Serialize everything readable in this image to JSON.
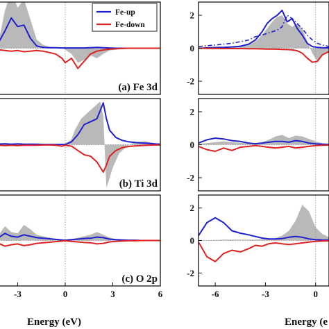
{
  "figure": {
    "legend": {
      "entries": [
        {
          "label": "Fe-up",
          "color": "#1f1fcc"
        },
        {
          "label": "Fe-down",
          "color": "#dd2222"
        }
      ]
    },
    "xlabel": "Energy (eV)",
    "fill_color": "#b9b9b9"
  },
  "chart_data": [
    {
      "type": "line",
      "panel": "left-top",
      "annotation": "(a) Fe 3d",
      "xlim": [
        -4.2,
        6
      ],
      "xticks": [],
      "ylim": [
        -1.6,
        1.6
      ],
      "yticks": [],
      "legend": [
        "Fe-up",
        "Fe-down"
      ],
      "legend_placement": "top-right",
      "fill_series": {
        "x": [
          -4.2,
          -3.8,
          -3.4,
          -3.0,
          -2.6,
          -2.2,
          -1.8,
          -1.4,
          -1.0,
          -0.6,
          -0.2,
          0,
          0.4,
          0.8,
          1.2,
          1.6,
          2.0,
          2.4,
          2.8,
          3.2,
          3.6,
          4.0,
          4.4,
          4.8,
          5.2,
          5.6,
          6.0
        ],
        "y": [
          0.25,
          1.3,
          2.0,
          1.4,
          1.7,
          1.0,
          0.3,
          0.12,
          0.05,
          0.03,
          0.02,
          -0.05,
          -0.2,
          -0.5,
          -0.4,
          -0.25,
          -0.35,
          -0.2,
          -0.08,
          -0.05,
          -0.02,
          0,
          0,
          0,
          0,
          0,
          0
        ]
      },
      "series": [
        {
          "name": "Fe-up",
          "x": [
            -4.2,
            -3.8,
            -3.4,
            -3.0,
            -2.6,
            -2.2,
            -1.8,
            -1.4,
            -1.0,
            -0.6,
            -0.2,
            0,
            0.4,
            0.8,
            1.2,
            1.6,
            2.0,
            2.4,
            2.8,
            3.2,
            3.6,
            4.0,
            4.4,
            4.8,
            5.2,
            5.6,
            6.0
          ],
          "y": [
            0.2,
            0.6,
            1.05,
            0.75,
            0.8,
            0.35,
            0.08,
            0.03,
            0.02,
            0.02,
            0.01,
            0.01,
            0.01,
            0.01,
            0.01,
            0.02,
            0.03,
            0.02,
            0.01,
            0,
            0,
            0,
            0,
            0,
            0,
            0,
            0
          ]
        },
        {
          "name": "Fe-down",
          "x": [
            -4.2,
            -3.8,
            -3.4,
            -3.0,
            -2.6,
            -2.2,
            -1.8,
            -1.4,
            -1.0,
            -0.6,
            -0.2,
            0,
            0.4,
            0.8,
            1.2,
            1.6,
            2.0,
            2.4,
            2.8,
            3.2,
            3.6,
            4.0,
            4.4,
            4.8,
            5.2,
            5.6,
            6.0
          ],
          "y": [
            -0.05,
            -0.08,
            -0.1,
            -0.08,
            -0.12,
            -0.1,
            -0.08,
            -0.1,
            -0.15,
            -0.2,
            -0.35,
            -0.5,
            -0.35,
            -0.7,
            -0.45,
            -0.2,
            -0.1,
            -0.06,
            -0.03,
            -0.02,
            -0.01,
            0,
            0,
            0,
            0,
            0,
            0
          ]
        }
      ]
    },
    {
      "type": "line",
      "panel": "left-middle",
      "annotation": "(b) Ti 3d",
      "xlim": [
        -4.2,
        6
      ],
      "xticks": [],
      "ylim": [
        -1.6,
        1.6
      ],
      "yticks": [],
      "fill_series": {
        "x": [
          -4.2,
          -3.8,
          -3.4,
          -3.0,
          -2.6,
          -2.2,
          -1.8,
          -1.4,
          -1.0,
          -0.6,
          -0.2,
          0,
          0.4,
          0.6,
          1.0,
          1.4,
          1.8,
          2.2,
          2.4,
          2.6,
          3.0,
          3.4,
          3.8,
          4.2,
          4.6,
          5.0,
          5.4,
          5.8,
          6.0
        ],
        "y": [
          0.05,
          0.06,
          0.04,
          0.05,
          0.03,
          0.04,
          0.03,
          0.02,
          0.02,
          0.01,
          0.01,
          0.0,
          0.2,
          0.5,
          0.9,
          1.1,
          1.3,
          1.5,
          1.0,
          -1.5,
          -0.8,
          -0.3,
          -0.1,
          0.05,
          0.1,
          0.12,
          0.08,
          0.04,
          0.02
        ]
      },
      "series": [
        {
          "name": "Fe-up",
          "x": [
            -4.2,
            -3.8,
            -3.4,
            -3.0,
            -2.6,
            -2.2,
            -1.8,
            -1.4,
            -1.0,
            -0.6,
            -0.2,
            0,
            0.4,
            0.8,
            1.2,
            1.6,
            2.0,
            2.4,
            2.6,
            2.8,
            3.2,
            3.6,
            4.0,
            4.4,
            4.8,
            5.2,
            5.6,
            6.0
          ],
          "y": [
            0.02,
            0.03,
            0.02,
            0.03,
            0.02,
            0.02,
            0.02,
            0.01,
            0.01,
            0.01,
            0.01,
            0.01,
            0.1,
            0.35,
            0.7,
            0.8,
            0.9,
            1.45,
            0.9,
            0.5,
            0.25,
            0.15,
            0.1,
            0.08,
            0.06,
            0.05,
            0.03,
            0.02
          ]
        },
        {
          "name": "Fe-down",
          "x": [
            -4.2,
            -3.8,
            -3.4,
            -3.0,
            -2.6,
            -2.2,
            -1.8,
            -1.4,
            -1.0,
            -0.6,
            -0.2,
            0,
            0.4,
            0.8,
            1.2,
            1.6,
            2.0,
            2.4,
            2.6,
            2.8,
            3.2,
            3.6,
            4.0,
            4.4,
            4.8,
            5.2,
            5.6,
            6.0
          ],
          "y": [
            -0.02,
            -0.03,
            -0.02,
            -0.03,
            -0.02,
            -0.02,
            -0.02,
            -0.01,
            -0.01,
            -0.02,
            -0.05,
            -0.02,
            -0.05,
            -0.2,
            -0.35,
            -0.4,
            -0.6,
            -0.95,
            -0.7,
            -0.4,
            -0.2,
            -0.1,
            -0.06,
            -0.04,
            -0.03,
            -0.02,
            -0.01,
            -0.01
          ]
        }
      ]
    },
    {
      "type": "line",
      "panel": "left-bottom",
      "annotation": "(c) O 2p",
      "xlim": [
        -4.2,
        6
      ],
      "xticks": [
        -3,
        0,
        3,
        6
      ],
      "ylim": [
        -1.6,
        1.6
      ],
      "yticks": [],
      "xlabel": "Energy (eV)",
      "fill_series": {
        "x": [
          -4.2,
          -3.8,
          -3.4,
          -3.0,
          -2.6,
          -2.2,
          -1.8,
          -1.4,
          -1.0,
          -0.6,
          -0.2,
          0,
          0.4,
          0.8,
          1.2,
          1.6,
          2.0,
          2.4,
          2.8,
          3.2,
          3.6,
          4.0,
          4.4,
          4.8,
          5.2,
          5.6,
          6.0
        ],
        "y": [
          0.2,
          0.5,
          0.3,
          0.25,
          0.55,
          0.4,
          0.2,
          0.15,
          0.1,
          0.05,
          0.02,
          0.0,
          0.05,
          0.1,
          0.15,
          0.2,
          0.3,
          0.2,
          0.1,
          0.05,
          0.03,
          0.02,
          0.01,
          0,
          0,
          0,
          0
        ]
      },
      "series": [
        {
          "name": "Fe-up",
          "x": [
            -4.2,
            -3.8,
            -3.4,
            -3.0,
            -2.6,
            -2.2,
            -1.8,
            -1.4,
            -1.0,
            -0.6,
            -0.2,
            0,
            0.4,
            0.8,
            1.2,
            1.6,
            2.0,
            2.4,
            2.8,
            3.2,
            3.6,
            4.0,
            4.4,
            4.8,
            5.2,
            5.6,
            6.0
          ],
          "y": [
            0.1,
            0.25,
            0.15,
            0.12,
            0.2,
            0.15,
            0.1,
            0.08,
            0.06,
            0.04,
            0.02,
            0.01,
            0.03,
            0.05,
            0.07,
            0.08,
            0.12,
            0.1,
            0.05,
            0.03,
            0.02,
            0.01,
            0.01,
            0,
            0,
            0,
            0
          ]
        },
        {
          "name": "Fe-down",
          "x": [
            -4.2,
            -3.8,
            -3.4,
            -3.0,
            -2.6,
            -2.2,
            -1.8,
            -1.4,
            -1.0,
            -0.6,
            -0.2,
            0,
            0.4,
            0.8,
            1.2,
            1.6,
            2.0,
            2.4,
            2.8,
            3.2,
            3.6,
            4.0,
            4.4,
            4.8,
            5.2,
            5.6,
            6.0
          ],
          "y": [
            -0.1,
            -0.2,
            -0.15,
            -0.12,
            -0.18,
            -0.15,
            -0.1,
            -0.08,
            -0.06,
            -0.04,
            -0.02,
            -0.01,
            -0.03,
            -0.05,
            -0.07,
            -0.08,
            -0.12,
            -0.1,
            -0.05,
            -0.03,
            -0.02,
            -0.01,
            -0.01,
            0,
            0,
            0,
            0
          ]
        }
      ]
    },
    {
      "type": "line",
      "panel": "right-top",
      "xlim": [
        -7,
        0.8
      ],
      "xticks": [],
      "ylim": [
        -2.8,
        2.8
      ],
      "yticks": [
        2,
        0,
        -2
      ],
      "fill_series": {
        "x": [
          -7.0,
          -6.5,
          -6.0,
          -5.5,
          -5.0,
          -4.5,
          -4.0,
          -3.6,
          -3.2,
          -2.9,
          -2.6,
          -2.3,
          -2.0,
          -1.7,
          -1.4,
          -1.1,
          -0.8,
          -0.5,
          -0.2,
          0.1,
          0.4,
          0.8
        ],
        "y": [
          0.02,
          0.03,
          0.05,
          0.05,
          0.08,
          0.1,
          0.2,
          0.4,
          0.8,
          1.2,
          1.6,
          1.9,
          2.0,
          1.5,
          1.3,
          1.5,
          1.2,
          0.4,
          -0.3,
          -0.8,
          -0.4,
          -0.2
        ]
      },
      "series": [
        {
          "name": "Fe-up",
          "x": [
            -7.0,
            -6.5,
            -6.0,
            -5.5,
            -5.0,
            -4.5,
            -4.0,
            -3.6,
            -3.2,
            -2.9,
            -2.6,
            -2.3,
            -2.0,
            -1.7,
            -1.4,
            -1.1,
            -0.8,
            -0.5,
            -0.2,
            0.1,
            0.4,
            0.8
          ],
          "y": [
            0.0,
            0.02,
            0.04,
            0.05,
            0.08,
            0.12,
            0.25,
            0.5,
            1.0,
            1.5,
            1.8,
            2.0,
            2.3,
            1.6,
            1.8,
            1.2,
            0.8,
            0.3,
            0.1,
            0.05,
            0.03,
            0.02
          ]
        },
        {
          "name": "Fe-down",
          "x": [
            -7.0,
            -6.5,
            -6.0,
            -5.5,
            -5.0,
            -4.5,
            -4.0,
            -3.6,
            -3.2,
            -2.9,
            -2.6,
            -2.3,
            -2.0,
            -1.7,
            -1.4,
            -1.1,
            -0.8,
            -0.5,
            -0.2,
            0.1,
            0.4,
            0.8
          ],
          "y": [
            0.0,
            -0.01,
            -0.01,
            -0.02,
            -0.02,
            -0.02,
            -0.03,
            -0.03,
            -0.04,
            -0.05,
            -0.05,
            -0.06,
            -0.07,
            -0.08,
            -0.1,
            -0.15,
            -0.3,
            -0.6,
            -0.85,
            -0.8,
            -0.4,
            -0.2
          ]
        },
        {
          "name": "",
          "style": "dash-dot",
          "x": [
            -7.0,
            -6.5,
            -6.0,
            -5.5,
            -5.0,
            -4.5,
            -4.0,
            -3.6,
            -3.2,
            -2.9,
            -2.6,
            -2.3,
            -2.0,
            -1.7,
            -1.4,
            -1.1,
            -0.8,
            -0.5,
            -0.2,
            0.1,
            0.4,
            0.8
          ],
          "y": [
            0.1,
            0.15,
            0.2,
            0.25,
            0.3,
            0.4,
            0.5,
            0.7,
            0.8,
            0.9,
            1.0,
            1.1,
            1.3,
            2.0,
            1.8,
            1.5,
            1.2,
            0.8,
            0.5,
            0.3,
            0.2,
            0.1
          ]
        }
      ]
    },
    {
      "type": "line",
      "panel": "right-middle",
      "xlim": [
        -7,
        0.8
      ],
      "xticks": [],
      "ylim": [
        -2.8,
        2.8
      ],
      "yticks": [
        2,
        0,
        -2
      ],
      "fill_series": {
        "x": [
          -7.0,
          -6.5,
          -6.0,
          -5.5,
          -5.0,
          -4.5,
          -4.0,
          -3.6,
          -3.2,
          -2.8,
          -2.4,
          -2.0,
          -1.6,
          -1.2,
          -0.8,
          -0.4,
          0,
          0.4,
          0.8
        ],
        "y": [
          0.05,
          0.1,
          0.15,
          0.2,
          0.15,
          0.12,
          0.1,
          0.1,
          0.15,
          0.3,
          0.5,
          0.6,
          0.4,
          0.55,
          0.5,
          0.35,
          0.2,
          0.1,
          0.05
        ]
      },
      "series": [
        {
          "name": "Fe-up",
          "x": [
            -7.0,
            -6.5,
            -6.0,
            -5.5,
            -5.0,
            -4.5,
            -4.0,
            -3.6,
            -3.2,
            -2.8,
            -2.4,
            -2.0,
            -1.6,
            -1.2,
            -0.8,
            -0.4,
            0,
            0.4,
            0.8
          ],
          "y": [
            0.1,
            0.3,
            0.4,
            0.35,
            0.25,
            0.2,
            0.1,
            0.05,
            0.1,
            0.15,
            0.2,
            0.2,
            0.15,
            0.25,
            0.2,
            0.1,
            0.05,
            0.03,
            0.02
          ]
        },
        {
          "name": "Fe-down",
          "x": [
            -7.0,
            -6.5,
            -6.0,
            -5.5,
            -5.0,
            -4.5,
            -4.0,
            -3.6,
            -3.2,
            -2.8,
            -2.4,
            -2.0,
            -1.6,
            -1.2,
            -0.8,
            -0.4,
            0,
            0.4,
            0.8
          ],
          "y": [
            -0.1,
            -0.3,
            -0.4,
            -0.2,
            -0.35,
            -0.15,
            -0.1,
            -0.05,
            -0.1,
            -0.15,
            -0.2,
            -0.15,
            -0.1,
            -0.2,
            -0.15,
            -0.1,
            -0.05,
            -0.03,
            -0.02
          ]
        }
      ]
    },
    {
      "type": "line",
      "panel": "right-bottom",
      "xlim": [
        -7,
        0.8
      ],
      "xticks": [
        -6,
        -3,
        0
      ],
      "ylim": [
        -2.8,
        2.8
      ],
      "yticks": [
        2,
        0,
        -2
      ],
      "xlabel": "Energy (e",
      "fill_series": {
        "x": [
          -7.0,
          -6.5,
          -6.0,
          -5.5,
          -5.0,
          -4.5,
          -4.0,
          -3.6,
          -3.2,
          -2.8,
          -2.4,
          -2.0,
          -1.6,
          -1.2,
          -0.8,
          -0.4,
          0,
          0.4,
          0.8
        ],
        "y": [
          0.02,
          0.02,
          0.03,
          0.05,
          0.05,
          0.05,
          0.05,
          0.05,
          0.08,
          0.1,
          0.15,
          0.3,
          0.6,
          1.2,
          2.2,
          1.8,
          0.8,
          0.4,
          0.2
        ]
      },
      "series": [
        {
          "name": "Fe-up",
          "x": [
            -7.0,
            -6.5,
            -6.0,
            -5.5,
            -5.0,
            -4.5,
            -4.0,
            -3.6,
            -3.2,
            -2.8,
            -2.4,
            -2.0,
            -1.6,
            -1.2,
            -0.8,
            -0.4,
            0,
            0.4,
            0.8
          ],
          "y": [
            0.3,
            1.1,
            1.4,
            1.1,
            0.6,
            0.45,
            0.35,
            0.25,
            0.15,
            0.1,
            0.1,
            0.12,
            0.2,
            0.25,
            0.2,
            0.1,
            0.05,
            0.03,
            0.02
          ]
        },
        {
          "name": "Fe-down",
          "x": [
            -7.0,
            -6.5,
            -6.0,
            -5.5,
            -5.0,
            -4.5,
            -4.0,
            -3.6,
            -3.2,
            -2.8,
            -2.4,
            -2.0,
            -1.6,
            -1.2,
            -0.8,
            -0.4,
            0,
            0.4,
            0.8
          ],
          "y": [
            -0.1,
            -1.0,
            -1.3,
            -0.8,
            -0.6,
            -0.7,
            -0.5,
            -0.3,
            -0.35,
            -0.2,
            -0.15,
            -0.2,
            -0.25,
            -0.2,
            -0.15,
            -0.1,
            -0.05,
            -0.03,
            -0.02
          ]
        }
      ]
    }
  ]
}
